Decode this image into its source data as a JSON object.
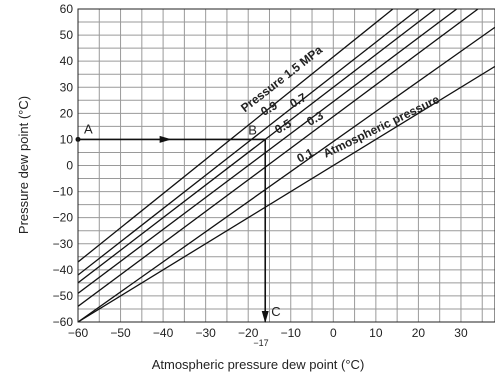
{
  "chart_data": {
    "type": "line",
    "xlabel": "Atmospheric pressure dew point (°C)",
    "ylabel": "Pressure dew point (°C)",
    "xlim": [
      -60,
      38
    ],
    "ylim": [
      -60,
      60
    ],
    "x_ticks": [
      -60,
      -50,
      -40,
      -30,
      -20,
      -10,
      0,
      10,
      20,
      30
    ],
    "y_ticks": [
      -60,
      -50,
      -40,
      -30,
      -20,
      -10,
      0,
      10,
      20,
      30,
      40,
      50,
      60
    ],
    "extra_x_tick": "−17",
    "grid": true,
    "series": [
      {
        "name": "Pressure 1.5 MPa",
        "points": [
          [
            -60,
            -37
          ],
          [
            14,
            60
          ]
        ]
      },
      {
        "name": "0.9",
        "points": [
          [
            -60,
            -42
          ],
          [
            20,
            60
          ]
        ]
      },
      {
        "name": "0.7",
        "points": [
          [
            -60,
            -45
          ],
          [
            24,
            60
          ]
        ]
      },
      {
        "name": "0.5",
        "points": [
          [
            -60,
            -49
          ],
          [
            29,
            60
          ]
        ]
      },
      {
        "name": "0.3",
        "points": [
          [
            -60,
            -54
          ],
          [
            34,
            60
          ]
        ]
      },
      {
        "name": "0.1",
        "points": [
          [
            -60,
            -60
          ],
          [
            38,
            53
          ]
        ]
      },
      {
        "name": "Atmospheric pressure",
        "points": [
          [
            -60,
            -60
          ],
          [
            38,
            38
          ]
        ]
      }
    ],
    "series_labels": [
      "Pressure 1.5 MPa",
      "0.9",
      "0.7",
      "0.5",
      "0.3",
      "0.1",
      "Atmospheric pressure"
    ],
    "example_path": {
      "A": {
        "label": "A",
        "point": [
          -60,
          10
        ]
      },
      "B": {
        "label": "B",
        "point": [
          -16,
          10
        ]
      },
      "C": {
        "label": "C",
        "point": [
          -16,
          -60
        ]
      }
    }
  }
}
